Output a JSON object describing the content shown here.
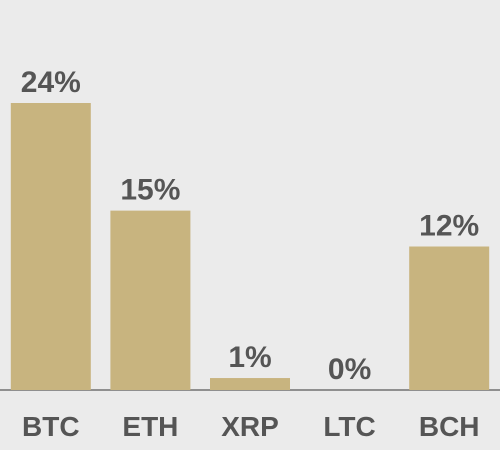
{
  "chart_data": {
    "type": "bar",
    "categories": [
      "BTC",
      "ETH",
      "XRP",
      "LTC",
      "BCH"
    ],
    "values": [
      24,
      15,
      1,
      0,
      12
    ],
    "value_labels": [
      "24%",
      "15%",
      "1%",
      "0%",
      "12%"
    ],
    "color": "#c8b47f"
  }
}
